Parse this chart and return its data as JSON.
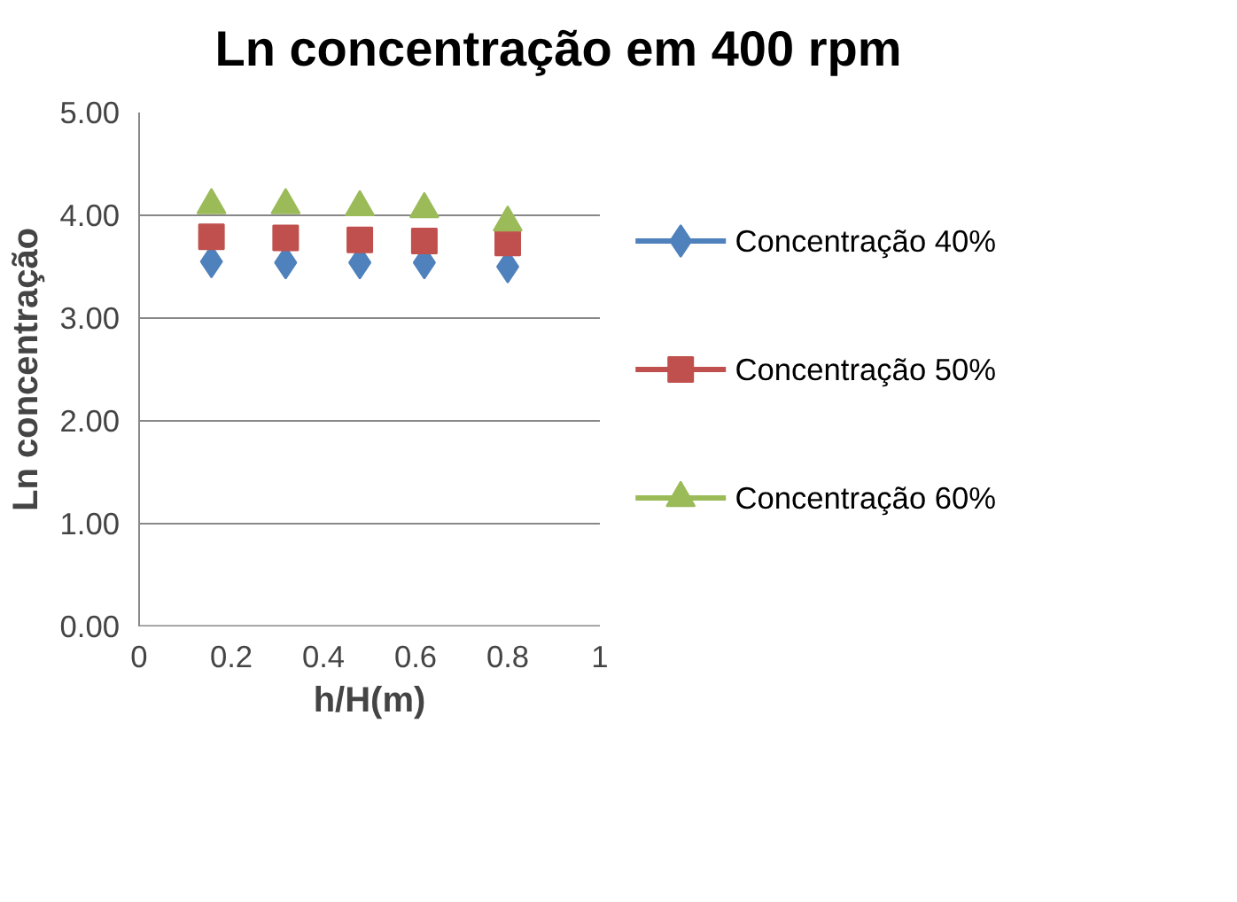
{
  "chart_data": {
    "type": "scatter",
    "title": "Ln concentração em 400 rpm",
    "xlabel": "h/H(m)",
    "ylabel": "Ln concentração",
    "x": [
      0.157,
      0.318,
      0.479,
      0.619,
      0.8
    ],
    "series": [
      {
        "name": "Concentração 40%",
        "color": "#4f81bd",
        "marker": "diamond",
        "values": [
          3.55,
          3.54,
          3.54,
          3.54,
          3.5
        ]
      },
      {
        "name": "Concentração 50%",
        "color": "#c0504d",
        "marker": "square",
        "values": [
          3.79,
          3.78,
          3.76,
          3.75,
          3.73
        ]
      },
      {
        "name": "Concentração 60%",
        "color": "#9bbb59",
        "marker": "triangle",
        "values": [
          4.1,
          4.1,
          4.08,
          4.06,
          3.93
        ]
      }
    ],
    "xlim": [
      0,
      1
    ],
    "xticks": [
      0,
      0.2,
      0.4,
      0.6,
      0.8,
      1
    ],
    "ylim": [
      0,
      5
    ],
    "yticks": [
      {
        "value": 0,
        "label": "0.00"
      },
      {
        "value": 1,
        "label": "1.00"
      },
      {
        "value": 2,
        "label": "2.00"
      },
      {
        "value": 3,
        "label": "3.00"
      },
      {
        "value": 4,
        "label": "4.00"
      },
      {
        "value": 5,
        "label": "5.00"
      }
    ],
    "grid": "y",
    "legend": "right"
  }
}
